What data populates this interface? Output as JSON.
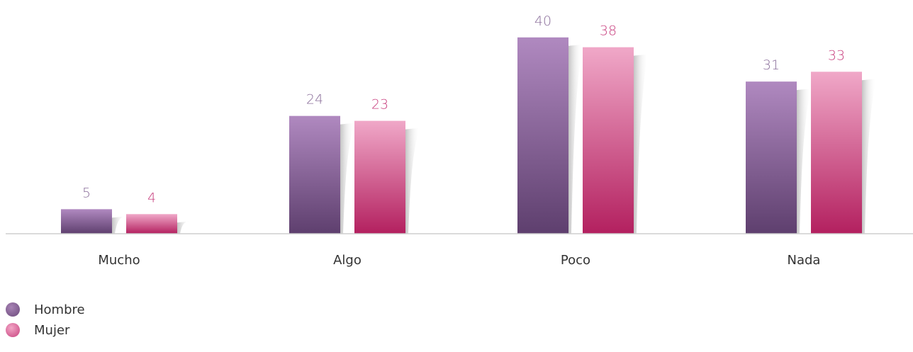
{
  "chart_data": {
    "type": "bar",
    "categories": [
      "Mucho",
      "Algo",
      "Poco",
      "Nada"
    ],
    "series": [
      {
        "name": "Hombre",
        "values": [
          5,
          24,
          40,
          31
        ],
        "color": "#8a5a92",
        "color_top": "#b089c0",
        "color_bottom": "#5e3f6e",
        "label_color": "#8a6e9a"
      },
      {
        "name": "Mujer",
        "values": [
          4,
          23,
          38,
          33
        ],
        "color": "#c23d78",
        "color_top": "#f0a8c8",
        "color_bottom": "#b3205f",
        "label_color": "#c83e7e"
      }
    ],
    "ylim": [
      0,
      40
    ],
    "legend_position": "bottom-left",
    "grid": false
  }
}
